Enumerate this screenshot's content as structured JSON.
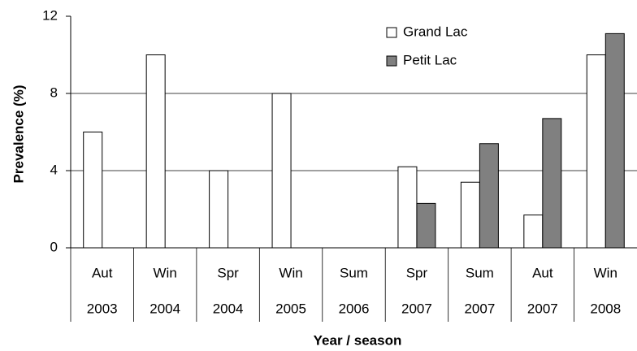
{
  "chart_data": {
    "type": "bar",
    "y_label": "Prevalence (%)",
    "x_label": "Year / season",
    "categories": [
      "Aut",
      "Win",
      "Spr",
      "Win",
      "Sum",
      "Spr",
      "Sum",
      "Aut",
      "Win"
    ],
    "category_years": [
      "2003",
      "2004",
      "2004",
      "2005",
      "2006",
      "2007",
      "2007",
      "2007",
      "2008"
    ],
    "series": [
      {
        "name": "Grand Lac",
        "color": "#ffffff",
        "values": [
          6,
          10,
          4,
          8,
          null,
          4.2,
          3.4,
          1.7,
          10
        ]
      },
      {
        "name": "Petit Lac",
        "color": "#808080",
        "values": [
          null,
          null,
          null,
          null,
          null,
          2.3,
          5.4,
          6.7,
          11.1
        ]
      }
    ],
    "ylim": [
      0,
      12
    ],
    "yticks": [
      0,
      4,
      8,
      12
    ],
    "grid": true,
    "legend": "top-right"
  }
}
